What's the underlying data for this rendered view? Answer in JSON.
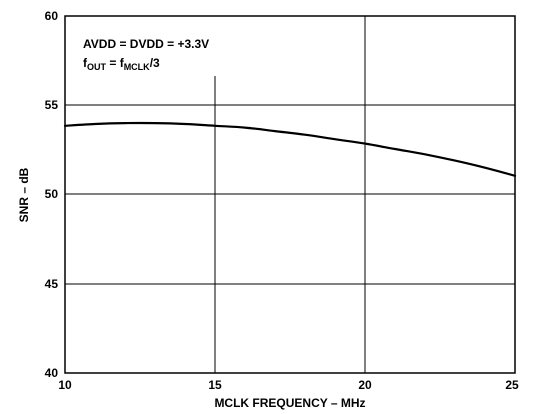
{
  "chart_data": {
    "type": "line",
    "title": "",
    "xlabel": "MCLK FREQUENCY – MHz",
    "ylabel": "SNR – dB",
    "xlim": [
      10,
      25
    ],
    "ylim": [
      40,
      60
    ],
    "x_ticks": [
      "10",
      "15",
      "20",
      "25"
    ],
    "y_ticks": [
      "40",
      "45",
      "50",
      "55",
      "60"
    ],
    "grid": true,
    "annotations": {
      "line1": "AVDD = DVDD = +3.3V",
      "line2": {
        "f1": "f",
        "sub1": "OUT",
        "eq": " = ",
        "f2": "f",
        "sub2": "MCLK",
        "tail": "/3"
      }
    },
    "series": [
      {
        "x": [
          10,
          11,
          12,
          13,
          14,
          15,
          16,
          17,
          18,
          19,
          20,
          21,
          22,
          23,
          24,
          25
        ],
        "y": [
          53.85,
          53.95,
          54.0,
          54.0,
          53.95,
          53.85,
          53.75,
          53.55,
          53.35,
          53.1,
          52.85,
          52.55,
          52.25,
          51.9,
          51.5,
          51.05
        ]
      }
    ]
  }
}
